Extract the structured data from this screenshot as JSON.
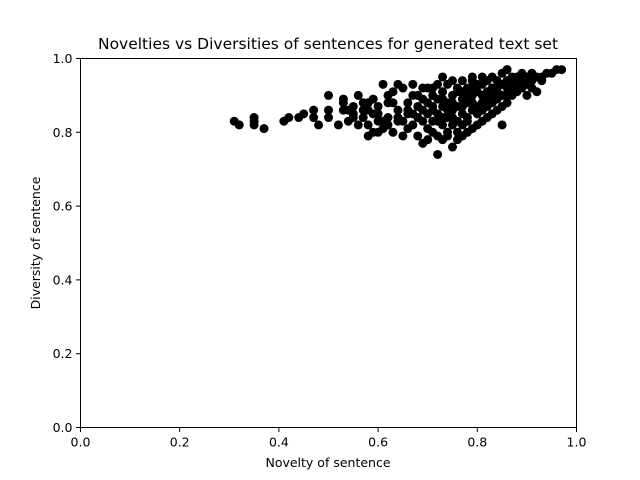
{
  "chart_data": {
    "type": "scatter",
    "title": "Novelties vs Diversities of sentences for generated text set",
    "xlabel": "Novelty of sentence",
    "ylabel": "Diversity of sentence",
    "xlim": [
      0.0,
      1.0
    ],
    "ylim": [
      0.0,
      1.0
    ],
    "x_ticks": [
      "0.0",
      "0.2",
      "0.4",
      "0.6",
      "0.8",
      "1.0"
    ],
    "y_ticks": [
      "0.0",
      "0.2",
      "0.4",
      "0.6",
      "0.8",
      "1.0"
    ],
    "grid": false,
    "marker_color": "#000000",
    "points": [
      [
        0.31,
        0.83
      ],
      [
        0.32,
        0.82
      ],
      [
        0.35,
        0.82
      ],
      [
        0.35,
        0.83
      ],
      [
        0.35,
        0.84
      ],
      [
        0.37,
        0.81
      ],
      [
        0.41,
        0.83
      ],
      [
        0.42,
        0.84
      ],
      [
        0.44,
        0.84
      ],
      [
        0.45,
        0.85
      ],
      [
        0.47,
        0.86
      ],
      [
        0.47,
        0.84
      ],
      [
        0.48,
        0.82
      ],
      [
        0.5,
        0.84
      ],
      [
        0.5,
        0.86
      ],
      [
        0.5,
        0.9
      ],
      [
        0.52,
        0.82
      ],
      [
        0.53,
        0.86
      ],
      [
        0.53,
        0.88
      ],
      [
        0.53,
        0.89
      ],
      [
        0.54,
        0.83
      ],
      [
        0.55,
        0.85
      ],
      [
        0.55,
        0.87
      ],
      [
        0.56,
        0.82
      ],
      [
        0.56,
        0.9
      ],
      [
        0.57,
        0.84
      ],
      [
        0.57,
        0.86
      ],
      [
        0.58,
        0.88
      ],
      [
        0.58,
        0.79
      ],
      [
        0.58,
        0.82
      ],
      [
        0.59,
        0.85
      ],
      [
        0.59,
        0.89
      ],
      [
        0.6,
        0.8
      ],
      [
        0.6,
        0.83
      ],
      [
        0.6,
        0.87
      ],
      [
        0.61,
        0.93
      ],
      [
        0.61,
        0.81
      ],
      [
        0.62,
        0.84
      ],
      [
        0.62,
        0.88
      ],
      [
        0.63,
        0.91
      ],
      [
        0.64,
        0.83
      ],
      [
        0.64,
        0.86
      ],
      [
        0.65,
        0.79
      ],
      [
        0.65,
        0.92
      ],
      [
        0.66,
        0.85
      ],
      [
        0.66,
        0.88
      ],
      [
        0.67,
        0.82
      ],
      [
        0.67,
        0.93
      ],
      [
        0.68,
        0.84
      ],
      [
        0.68,
        0.9
      ],
      [
        0.69,
        0.77
      ],
      [
        0.69,
        0.86
      ],
      [
        0.7,
        0.81
      ],
      [
        0.7,
        0.88
      ],
      [
        0.7,
        0.92
      ],
      [
        0.71,
        0.83
      ],
      [
        0.71,
        0.86
      ],
      [
        0.71,
        0.9
      ],
      [
        0.72,
        0.74
      ],
      [
        0.72,
        0.79
      ],
      [
        0.72,
        0.85
      ],
      [
        0.72,
        0.89
      ],
      [
        0.73,
        0.82
      ],
      [
        0.73,
        0.87
      ],
      [
        0.73,
        0.91
      ],
      [
        0.74,
        0.8
      ],
      [
        0.74,
        0.84
      ],
      [
        0.74,
        0.88
      ],
      [
        0.74,
        0.93
      ],
      [
        0.75,
        0.76
      ],
      [
        0.75,
        0.82
      ],
      [
        0.75,
        0.86
      ],
      [
        0.75,
        0.9
      ],
      [
        0.76,
        0.78
      ],
      [
        0.76,
        0.83
      ],
      [
        0.76,
        0.87
      ],
      [
        0.76,
        0.92
      ],
      [
        0.77,
        0.79
      ],
      [
        0.77,
        0.85
      ],
      [
        0.77,
        0.89
      ],
      [
        0.77,
        0.94
      ],
      [
        0.78,
        0.8
      ],
      [
        0.78,
        0.84
      ],
      [
        0.78,
        0.88
      ],
      [
        0.78,
        0.92
      ],
      [
        0.79,
        0.81
      ],
      [
        0.79,
        0.86
      ],
      [
        0.79,
        0.9
      ],
      [
        0.79,
        0.94
      ],
      [
        0.8,
        0.82
      ],
      [
        0.8,
        0.87
      ],
      [
        0.8,
        0.91
      ],
      [
        0.81,
        0.83
      ],
      [
        0.81,
        0.88
      ],
      [
        0.81,
        0.93
      ],
      [
        0.82,
        0.84
      ],
      [
        0.82,
        0.89
      ],
      [
        0.82,
        0.94
      ],
      [
        0.83,
        0.85
      ],
      [
        0.83,
        0.9
      ],
      [
        0.84,
        0.86
      ],
      [
        0.84,
        0.92
      ],
      [
        0.85,
        0.82
      ],
      [
        0.85,
        0.87
      ],
      [
        0.85,
        0.93
      ],
      [
        0.85,
        0.96
      ],
      [
        0.86,
        0.88
      ],
      [
        0.86,
        0.94
      ],
      [
        0.87,
        0.9
      ],
      [
        0.87,
        0.95
      ],
      [
        0.88,
        0.91
      ],
      [
        0.88,
        0.95
      ],
      [
        0.89,
        0.92
      ],
      [
        0.89,
        0.96
      ],
      [
        0.9,
        0.9
      ],
      [
        0.9,
        0.93
      ],
      [
        0.91,
        0.94
      ],
      [
        0.91,
        0.96
      ],
      [
        0.92,
        0.91
      ],
      [
        0.92,
        0.95
      ],
      [
        0.93,
        0.95
      ],
      [
        0.94,
        0.96
      ],
      [
        0.95,
        0.96
      ],
      [
        0.96,
        0.97
      ],
      [
        0.97,
        0.97
      ],
      [
        0.66,
        0.81
      ],
      [
        0.68,
        0.79
      ],
      [
        0.69,
        0.83
      ],
      [
        0.7,
        0.78
      ],
      [
        0.71,
        0.8
      ],
      [
        0.73,
        0.78
      ],
      [
        0.74,
        0.79
      ],
      [
        0.76,
        0.8
      ],
      [
        0.77,
        0.82
      ],
      [
        0.78,
        0.83
      ],
      [
        0.8,
        0.85
      ],
      [
        0.81,
        0.86
      ],
      [
        0.82,
        0.87
      ],
      [
        0.83,
        0.88
      ],
      [
        0.84,
        0.89
      ],
      [
        0.86,
        0.9
      ],
      [
        0.87,
        0.91
      ],
      [
        0.75,
        0.94
      ],
      [
        0.79,
        0.95
      ],
      [
        0.83,
        0.95
      ],
      [
        0.86,
        0.97
      ],
      [
        0.63,
        0.88
      ],
      [
        0.62,
        0.9
      ],
      [
        0.64,
        0.93
      ],
      [
        0.67,
        0.9
      ],
      [
        0.69,
        0.92
      ],
      [
        0.72,
        0.93
      ],
      [
        0.73,
        0.95
      ],
      [
        0.71,
        0.87
      ],
      [
        0.73,
        0.84
      ],
      [
        0.75,
        0.88
      ],
      [
        0.77,
        0.87
      ],
      [
        0.79,
        0.88
      ],
      [
        0.81,
        0.9
      ],
      [
        0.83,
        0.92
      ],
      [
        0.84,
        0.94
      ],
      [
        0.8,
        0.93
      ],
      [
        0.78,
        0.9
      ],
      [
        0.76,
        0.91
      ],
      [
        0.74,
        0.86
      ],
      [
        0.72,
        0.83
      ],
      [
        0.7,
        0.85
      ],
      [
        0.68,
        0.87
      ],
      [
        0.66,
        0.86
      ],
      [
        0.64,
        0.84
      ],
      [
        0.62,
        0.82
      ],
      [
        0.6,
        0.85
      ],
      [
        0.58,
        0.86
      ],
      [
        0.57,
        0.88
      ],
      [
        0.55,
        0.84
      ],
      [
        0.54,
        0.86
      ],
      [
        0.59,
        0.8
      ],
      [
        0.61,
        0.83
      ],
      [
        0.63,
        0.8
      ],
      [
        0.65,
        0.83
      ],
      [
        0.67,
        0.85
      ],
      [
        0.69,
        0.89
      ],
      [
        0.71,
        0.92
      ],
      [
        0.73,
        0.89
      ],
      [
        0.75,
        0.84
      ],
      [
        0.77,
        0.91
      ],
      [
        0.79,
        0.92
      ],
      [
        0.81,
        0.95
      ],
      [
        0.82,
        0.91
      ],
      [
        0.84,
        0.91
      ],
      [
        0.85,
        0.9
      ],
      [
        0.86,
        0.92
      ],
      [
        0.87,
        0.93
      ],
      [
        0.88,
        0.93
      ],
      [
        0.89,
        0.94
      ],
      [
        0.9,
        0.95
      ],
      [
        0.91,
        0.92
      ],
      [
        0.93,
        0.94
      ]
    ]
  }
}
